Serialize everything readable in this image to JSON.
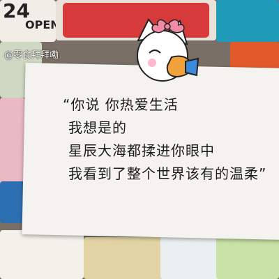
{
  "background": {
    "sticker_text_big": "24",
    "sticker_text_small": "OPEN",
    "handle": "@零食拜拜嘞"
  },
  "note": {
    "lines": [
      "“你说 你热爱生活",
      "我想是的",
      "星辰大海都揉进你眼中",
      "我看到了整个世界该有的温柔”"
    ]
  },
  "colors": {
    "paper": "#f5f3ef",
    "ink": "#1c1c1c",
    "cat_bow": "#f08aa6"
  },
  "icons": {
    "cat_sticker": "cat-sticker-icon"
  }
}
